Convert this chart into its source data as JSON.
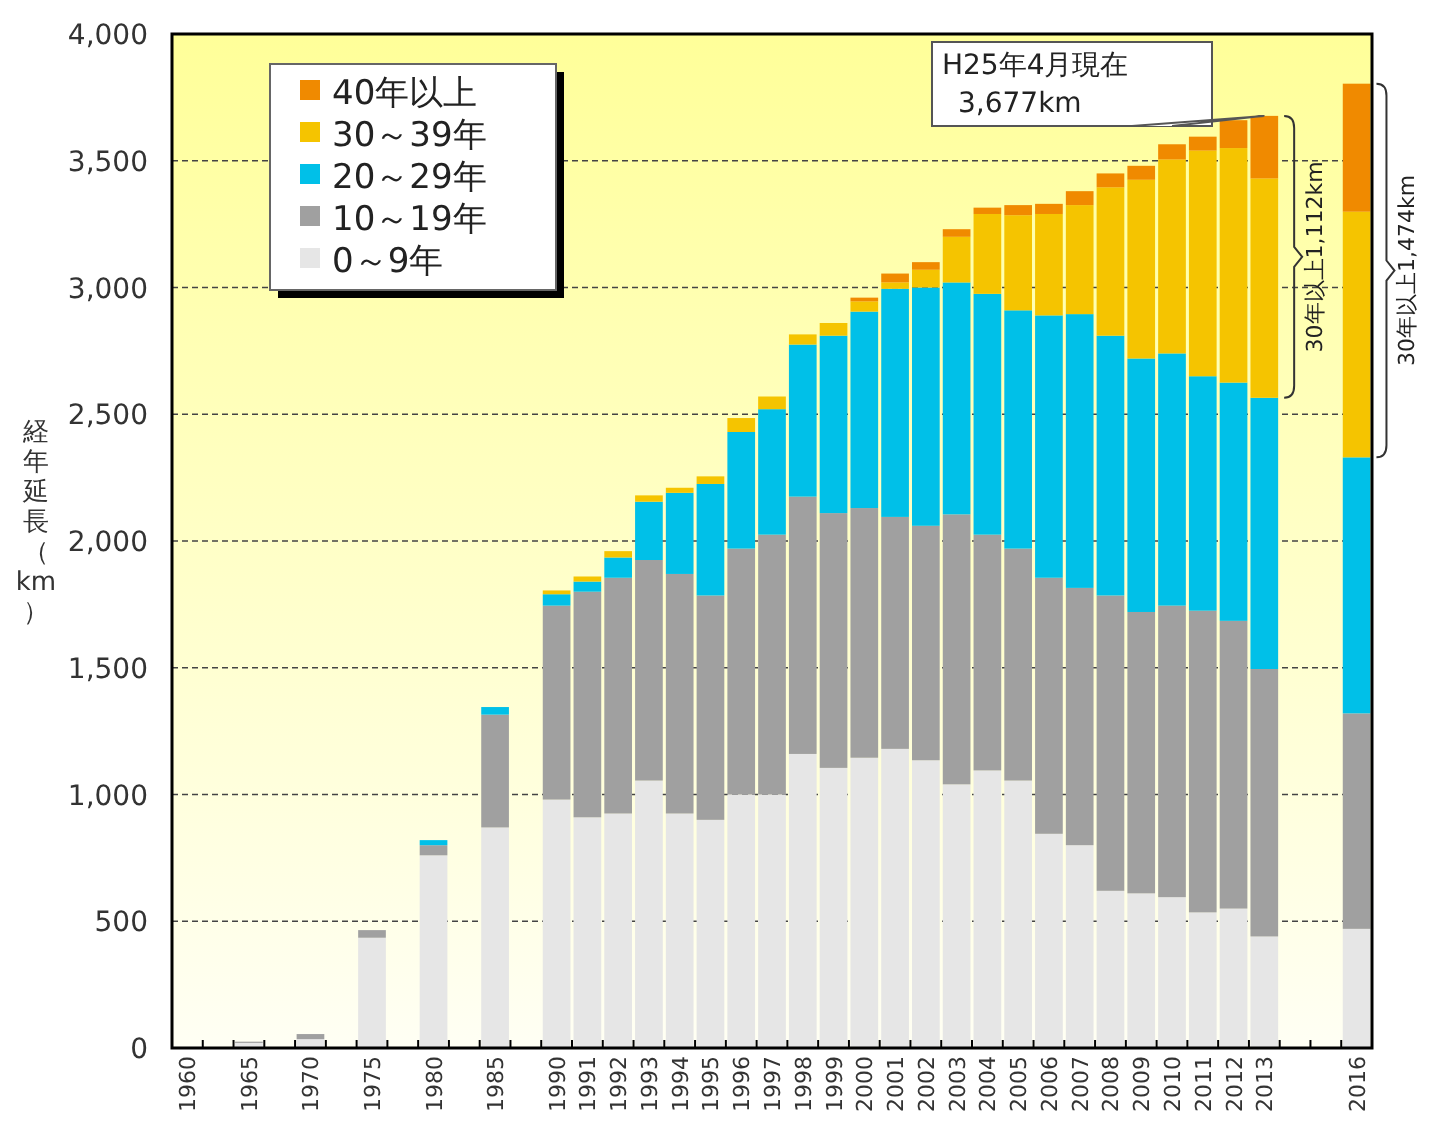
{
  "chart_data": {
    "type": "bar",
    "stacked": true,
    "ylabel": "経年延長（km）",
    "categories": [
      "1960",
      null,
      "1965",
      null,
      "1970",
      null,
      "1975",
      null,
      "1980",
      null,
      "1985",
      null,
      "1990",
      "1991",
      "1992",
      "1993",
      "1994",
      "1995",
      "1996",
      "1997",
      "1998",
      "1999",
      "2000",
      "2001",
      "2002",
      "2003",
      "2004",
      "2005",
      "2006",
      "2007",
      "2008",
      "2009",
      "2010",
      "2011",
      "2012",
      "2013",
      null,
      null,
      "2016"
    ],
    "series": [
      {
        "name": "0～9年",
        "color": "#e6e6e6",
        "values": [
          5,
          null,
          20,
          null,
          35,
          null,
          435,
          null,
          760,
          null,
          870,
          null,
          980,
          910,
          925,
          1055,
          925,
          900,
          1000,
          1000,
          1160,
          1105,
          1145,
          1180,
          1135,
          1040,
          1095,
          1055,
          845,
          800,
          620,
          610,
          595,
          535,
          550,
          440,
          null,
          null,
          470
        ]
      },
      {
        "name": "10～19年",
        "color": "#a0a0a0",
        "values": [
          null,
          null,
          5,
          null,
          20,
          null,
          30,
          null,
          40,
          null,
          445,
          null,
          765,
          890,
          930,
          870,
          945,
          885,
          970,
          1025,
          1015,
          1005,
          985,
          915,
          925,
          1065,
          930,
          915,
          1010,
          1015,
          1165,
          1110,
          1150,
          1190,
          1135,
          1055,
          null,
          null,
          850
        ]
      },
      {
        "name": "20～29年",
        "color": "#00c0e8",
        "values": [
          null,
          null,
          null,
          null,
          null,
          null,
          null,
          null,
          20,
          null,
          30,
          null,
          45,
          40,
          80,
          230,
          320,
          440,
          460,
          495,
          600,
          700,
          775,
          900,
          940,
          915,
          950,
          940,
          1035,
          1080,
          1025,
          1000,
          995,
          925,
          940,
          1070,
          null,
          null,
          1010
        ]
      },
      {
        "name": "30～39年",
        "color": "#f5c400",
        "values": [
          null,
          null,
          null,
          null,
          null,
          null,
          null,
          null,
          null,
          null,
          null,
          null,
          15,
          20,
          25,
          25,
          20,
          30,
          55,
          50,
          40,
          50,
          40,
          25,
          70,
          180,
          315,
          375,
          400,
          430,
          585,
          705,
          765,
          890,
          925,
          865,
          null,
          null,
          969
        ]
      },
      {
        "name": "40年以上",
        "color": "#f08a00",
        "values": [
          null,
          null,
          null,
          null,
          null,
          null,
          null,
          null,
          null,
          null,
          null,
          null,
          null,
          null,
          null,
          null,
          null,
          null,
          null,
          null,
          null,
          null,
          15,
          35,
          30,
          30,
          25,
          40,
          40,
          55,
          55,
          55,
          60,
          55,
          110,
          247,
          null,
          null,
          505
        ]
      }
    ],
    "ylim": [
      0,
      4000
    ],
    "yticks": [
      0,
      500,
      {
        "value": 1000,
        "label": "1,000"
      },
      {
        "value": 1500,
        "label": "1,500"
      },
      {
        "value": 2000,
        "label": "2,000"
      },
      {
        "value": 2500,
        "label": "2,500"
      },
      {
        "value": 3000,
        "label": "3,000"
      },
      {
        "value": 3500,
        "label": "3,500"
      },
      {
        "value": 4000,
        "label": "4,000"
      }
    ],
    "grid": "y",
    "legend": "top left",
    "annotations": [
      {
        "text": "H25年4月現在\n3,677km",
        "x": "2013",
        "y": 3677
      },
      "30年以上1,112km",
      "30年以上1,474km"
    ]
  }
}
